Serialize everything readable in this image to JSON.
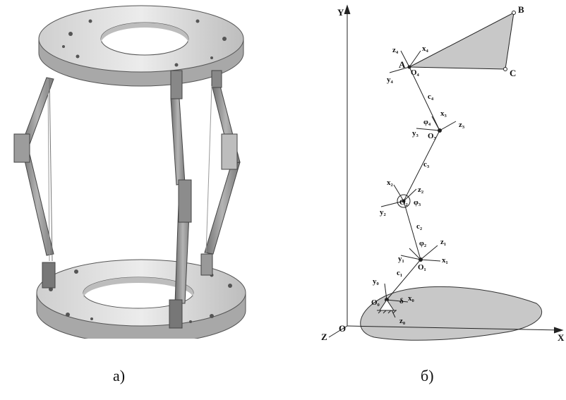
{
  "captions": {
    "left": "а)",
    "right": "б)"
  },
  "axes": {
    "y": "Y",
    "x": "X",
    "z": "Z",
    "origin": "O"
  },
  "points": {
    "A": "A",
    "B": "B",
    "C": "C"
  },
  "frames": [
    {
      "name": "frame-4",
      "z": "z₄",
      "x": "x₄",
      "y": "y₄",
      "o": "O₄"
    },
    {
      "name": "frame-3",
      "z": "z₃",
      "x": "x₃",
      "y": "y₃",
      "o": "O₃"
    },
    {
      "name": "frame-2",
      "z": "z₂",
      "x": "x₂",
      "y": "y₂",
      "o": "O₂"
    },
    {
      "name": "frame-1",
      "z": "z₁",
      "x": "x₁",
      "y": "y₁",
      "o": "O₁"
    },
    {
      "name": "frame-0",
      "z": "z₀",
      "x": "x₀",
      "y": "y₀",
      "o": "O₀"
    }
  ],
  "links": {
    "c4": "c₄",
    "c3": "c₃",
    "c2": "c₂",
    "c1": "c₁"
  },
  "angles": {
    "phi4": "φ₄",
    "phi3": "φ₃",
    "phi2": "φ₂",
    "delta": "δ"
  },
  "colors": {
    "plate": "#dcdcdc",
    "plate_dark": "#9a9a9a",
    "strut": "#8f8f8f",
    "shape_fill": "#c8c8c8",
    "line": "#222222"
  }
}
